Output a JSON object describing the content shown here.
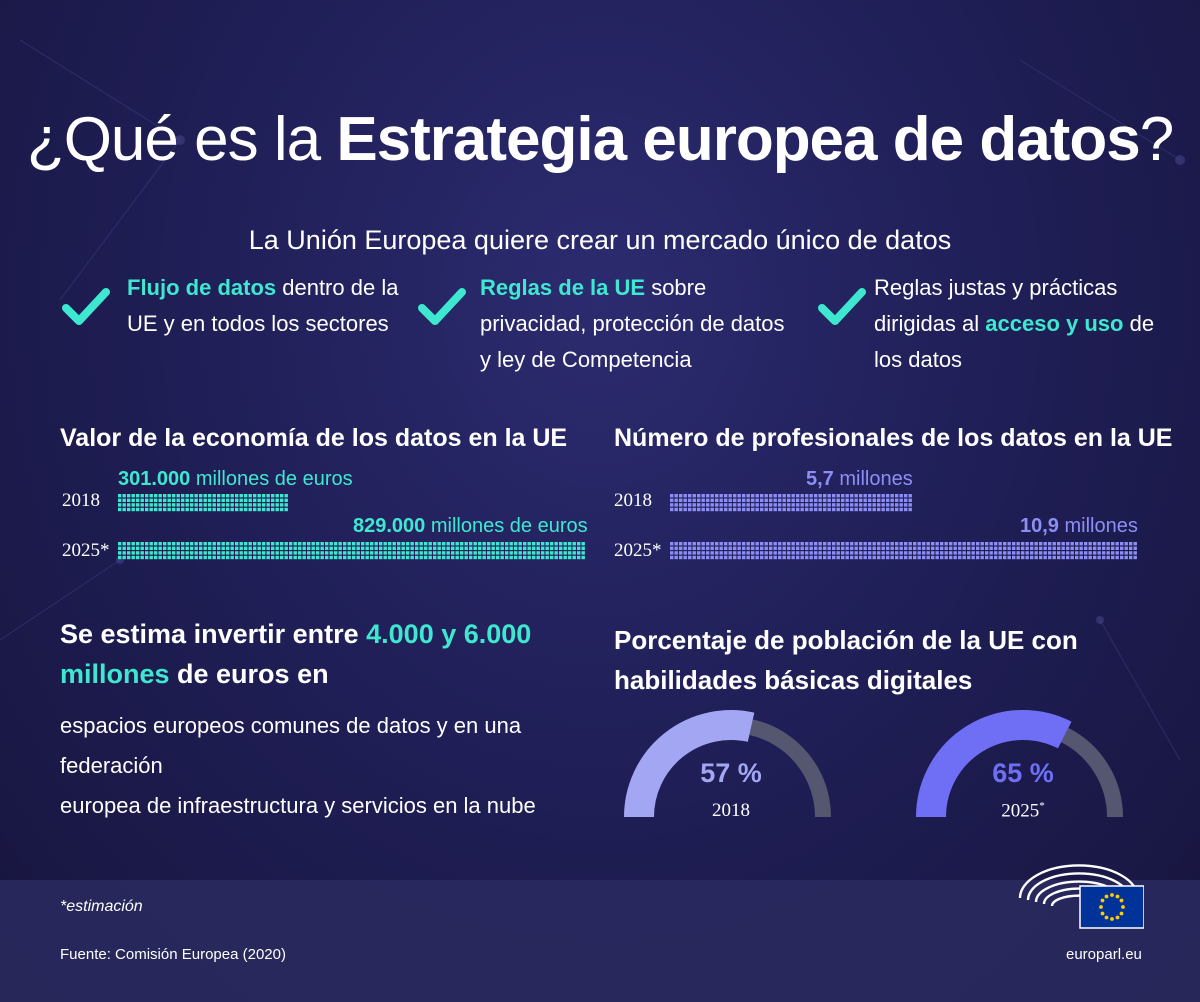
{
  "title": {
    "prefix": "¿Qué es la ",
    "bold": "Estrategia europea de datos",
    "suffix": "?"
  },
  "subtitle": "La Unión Europea quiere crear un mercado único de datos",
  "features": [
    {
      "highlight": "Flujo de datos",
      "line1_rest": " dentro de la",
      "line2": "UE y en todos los sectores"
    },
    {
      "highlight": "Reglas de la UE",
      "line1_rest": " sobre",
      "line2": "privacidad, protección de datos",
      "line3": "y ley de Competencia"
    },
    {
      "line1": "Reglas justas y prácticas",
      "line2_pre": "dirigidas al ",
      "highlight": "acceso y uso",
      "line2_post": " de",
      "line3": "los datos"
    }
  ],
  "colors": {
    "teal": "#3ee8d0",
    "lavender": "#8d8ef5",
    "gauge_2018": "#a3a6f2",
    "gauge_2025": "#6f6ff5",
    "gauge_track": "#55566f"
  },
  "chart_data": [
    {
      "type": "bar",
      "title": "Valor de la economía de los datos en la UE",
      "categories": [
        "2018",
        "2025*"
      ],
      "values": [
        301000,
        829000
      ],
      "unit": "millones de euros",
      "labels": [
        {
          "number": "301.000",
          "unit": " millones de euros"
        },
        {
          "number": "829.000",
          "unit": " millones de euros"
        }
      ]
    },
    {
      "type": "bar",
      "title": "Número de profesionales de los datos en la UE",
      "categories": [
        "2018",
        "2025*"
      ],
      "values": [
        5.7,
        10.9
      ],
      "unit": "millones",
      "labels": [
        {
          "number": "5,7",
          "unit": " millones"
        },
        {
          "number": "10,9",
          "unit": " millones"
        }
      ]
    },
    {
      "type": "gauge",
      "title_line1": "Porcentaje de población de la UE con",
      "title_line2": "habilidades básicas digitales",
      "values": [
        57,
        65
      ],
      "labels": [
        "57 %",
        "65 %"
      ],
      "years": [
        "2018",
        "2025"
      ]
    }
  ],
  "investment": {
    "line1_pre": "Se estima invertir entre ",
    "line1_hl": "4.000 y 6.000",
    "line2_hl": "millones",
    "line2_post": " de euros en",
    "body1": "espacios europeos comunes de datos y en una federación",
    "body2": "europea de infraestructura y servicios en la nube"
  },
  "footnote": "*estimación",
  "source": "Fuente: Comisión Europea (2020)",
  "website": "europarl.eu",
  "asterisk": "*"
}
